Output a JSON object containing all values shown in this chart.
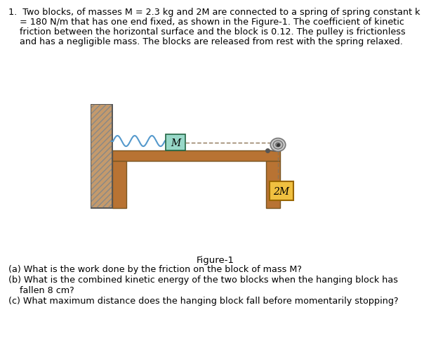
{
  "bg_color": "#ffffff",
  "wall_color": "#b87333",
  "wall_hatch": "////",
  "table_color": "#b87333",
  "block_M_color": "#98d8c8",
  "block_2M_color": "#f0c040",
  "text_color": "#000000",
  "rope_color": "#8B7355",
  "spring_color": "#5599cc",
  "pulley_color": "#aaaaaa",
  "figure_label": "Figure-1",
  "line1": "1.  Two blocks, of masses M = 2.3 kg and 2M are connected to a spring of spring constant k",
  "line2": "    = 180 N/m that has one end fixed, as shown in the Figure-1. The coefficient of kinetic",
  "line3": "    friction between the horizontal surface and the block is 0.12. The pulley is frictionless",
  "line4": "    and has a negligible mass. The blocks are released from rest with the spring relaxed.",
  "qa": "(a) What is the work done by the friction on the block of mass M?",
  "qb1": "(b) What is the combined kinetic energy of the two blocks when the hanging block has",
  "qb2": "    fallen 8 cm?",
  "qc": "(c) What maximum distance does the hanging block fall before momentarily stopping?"
}
